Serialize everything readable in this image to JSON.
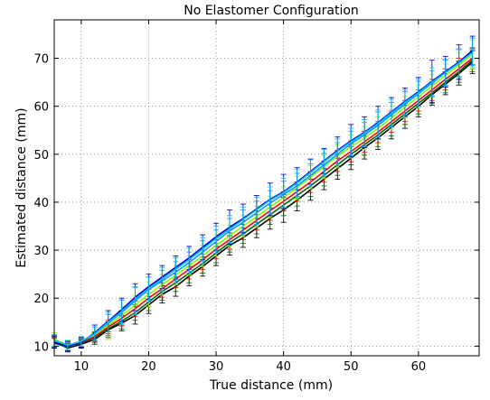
{
  "chart_data": {
    "type": "line",
    "title": "No Elastomer Configuration",
    "xlabel": "True distance (mm)",
    "ylabel": "Estimated distance (mm)",
    "xlim": [
      6,
      69
    ],
    "ylim": [
      8,
      78
    ],
    "x_ticks": [
      10,
      20,
      30,
      40,
      50,
      60
    ],
    "y_ticks": [
      10,
      20,
      30,
      40,
      50,
      60,
      70
    ],
    "grid": true,
    "legend": "none",
    "x": [
      6,
      8,
      10,
      12,
      14,
      16,
      18,
      20,
      22,
      24,
      26,
      28,
      30,
      32,
      34,
      36,
      38,
      40,
      42,
      44,
      46,
      48,
      50,
      52,
      54,
      56,
      58,
      60,
      62,
      64,
      66,
      68
    ],
    "series": [
      {
        "color": "#000000",
        "values": [
          11.0,
          9.6,
          10.4,
          11.4,
          13.4,
          14.8,
          16.4,
          18.6,
          20.8,
          22.4,
          24.6,
          26.6,
          28.8,
          31.0,
          32.6,
          34.6,
          36.6,
          38.4,
          40.4,
          42.6,
          44.8,
          47.0,
          49.2,
          51.4,
          53.4,
          55.6,
          57.8,
          60.0,
          62.4,
          64.6,
          66.8,
          69.2
        ],
        "errors": [
          1.2,
          0.8,
          0.8,
          1.0,
          1.6,
          1.6,
          1.8,
          1.8,
          1.8,
          2.0,
          2.0,
          2.0,
          2.0,
          2.0,
          2.0,
          2.0,
          2.2,
          2.6,
          2.2,
          2.2,
          2.2,
          2.2,
          2.4,
          2.4,
          2.4,
          2.4,
          2.4,
          2.2,
          2.2,
          2.2,
          2.4,
          2.4
        ]
      },
      {
        "color": "#006400",
        "values": [
          10.6,
          9.8,
          10.6,
          11.8,
          13.6,
          15.2,
          17.0,
          19.2,
          21.4,
          23.2,
          25.2,
          27.2,
          29.4,
          31.6,
          33.4,
          35.4,
          37.4,
          39.4,
          41.4,
          43.4,
          45.6,
          47.8,
          50.0,
          52.0,
          54.0,
          56.2,
          58.4,
          60.6,
          62.8,
          65.0,
          67.2,
          69.6
        ],
        "errors": [
          1.0,
          0.8,
          0.8,
          1.0,
          1.4,
          1.6,
          1.6,
          1.8,
          1.8,
          1.8,
          2.0,
          2.0,
          2.0,
          2.0,
          2.0,
          2.0,
          2.0,
          2.2,
          2.2,
          2.2,
          2.2,
          2.2,
          2.2,
          2.2,
          2.4,
          2.4,
          2.2,
          2.2,
          2.2,
          2.2,
          2.2,
          2.4
        ]
      },
      {
        "color": "#ff0000",
        "values": [
          10.8,
          10.0,
          10.8,
          12.0,
          14.0,
          15.8,
          17.8,
          20.0,
          22.0,
          24.0,
          26.0,
          28.0,
          30.2,
          32.2,
          34.2,
          36.2,
          38.2,
          40.2,
          42.2,
          44.2,
          46.4,
          48.6,
          50.6,
          52.6,
          54.6,
          56.8,
          59.0,
          61.2,
          63.4,
          65.6,
          67.8,
          70.0
        ],
        "errors": [
          1.0,
          0.8,
          0.8,
          1.0,
          1.4,
          1.6,
          1.6,
          1.8,
          1.8,
          1.8,
          2.0,
          2.0,
          2.0,
          2.0,
          2.0,
          2.0,
          2.0,
          2.0,
          2.0,
          2.2,
          2.2,
          2.2,
          2.2,
          2.2,
          2.2,
          2.2,
          2.2,
          2.2,
          2.2,
          2.2,
          2.2,
          2.2
        ]
      },
      {
        "color": "#7fff00",
        "values": [
          11.4,
          10.2,
          11.0,
          12.4,
          14.4,
          16.4,
          18.6,
          20.8,
          22.8,
          24.8,
          26.8,
          28.8,
          31.0,
          33.0,
          35.0,
          37.0,
          39.0,
          41.0,
          43.0,
          45.2,
          47.4,
          49.6,
          51.6,
          53.4,
          55.4,
          57.6,
          59.8,
          62.0,
          64.2,
          66.4,
          68.6,
          70.8
        ],
        "errors": [
          1.4,
          1.0,
          1.0,
          1.2,
          3.0,
          1.8,
          2.0,
          2.6,
          2.2,
          2.0,
          2.0,
          2.2,
          2.2,
          2.2,
          2.2,
          2.2,
          2.2,
          2.2,
          2.4,
          2.4,
          2.4,
          2.4,
          2.4,
          2.4,
          2.4,
          2.4,
          2.2,
          2.4,
          2.4,
          2.4,
          2.6,
          3.0
        ]
      },
      {
        "color": "#1e90ff",
        "values": [
          11.0,
          10.0,
          10.8,
          12.6,
          14.8,
          17.0,
          19.4,
          21.8,
          23.6,
          25.4,
          27.4,
          29.6,
          31.8,
          34.0,
          35.8,
          37.8,
          39.8,
          41.6,
          43.4,
          45.6,
          47.8,
          50.0,
          52.2,
          54.0,
          56.0,
          58.2,
          60.4,
          62.6,
          64.8,
          67.0,
          69.0,
          71.4
        ],
        "errors": [
          1.2,
          1.0,
          1.0,
          1.4,
          1.8,
          2.6,
          2.8,
          2.6,
          2.2,
          2.2,
          2.2,
          2.4,
          2.4,
          2.6,
          2.6,
          2.4,
          2.6,
          2.8,
          2.6,
          2.4,
          2.4,
          2.4,
          2.6,
          2.6,
          2.8,
          2.6,
          2.6,
          2.6,
          2.6,
          2.6,
          2.8,
          2.8
        ]
      },
      {
        "color": "#0000cd",
        "values": [
          10.8,
          10.0,
          10.8,
          12.8,
          15.2,
          17.6,
          20.2,
          22.4,
          24.4,
          26.4,
          28.4,
          30.6,
          32.8,
          34.8,
          36.6,
          38.6,
          40.6,
          42.2,
          44.2,
          46.4,
          48.6,
          50.8,
          52.8,
          54.6,
          56.6,
          58.8,
          61.0,
          63.0,
          65.2,
          67.2,
          69.2,
          71.6
        ],
        "errors": [
          1.2,
          1.0,
          1.0,
          1.6,
          2.2,
          2.4,
          2.8,
          2.6,
          2.4,
          2.4,
          2.4,
          2.6,
          2.8,
          3.6,
          3.0,
          2.8,
          3.4,
          3.6,
          3.0,
          2.6,
          2.6,
          2.8,
          3.4,
          3.2,
          3.4,
          3.0,
          2.8,
          3.0,
          4.4,
          3.2,
          3.6,
          3.0
        ]
      },
      {
        "color": "#00bfff",
        "values": [
          11.2,
          10.2,
          11.0,
          12.6,
          15.0,
          17.2,
          19.8,
          22.0,
          24.0,
          26.0,
          28.0,
          30.2,
          32.4,
          34.4,
          36.4,
          38.4,
          40.4,
          42.0,
          44.0,
          46.2,
          48.4,
          50.6,
          52.6,
          54.4,
          56.4,
          58.6,
          60.8,
          62.8,
          65.0,
          67.0,
          69.0,
          71.2
        ],
        "errors": [
          1.2,
          1.0,
          1.0,
          1.4,
          2.0,
          2.4,
          2.6,
          2.4,
          2.4,
          2.4,
          2.4,
          2.4,
          2.6,
          2.8,
          2.6,
          2.6,
          2.8,
          3.0,
          2.8,
          2.6,
          2.6,
          2.6,
          2.8,
          2.8,
          2.8,
          2.8,
          2.6,
          2.8,
          3.0,
          2.8,
          3.0,
          3.0
        ]
      }
    ]
  }
}
